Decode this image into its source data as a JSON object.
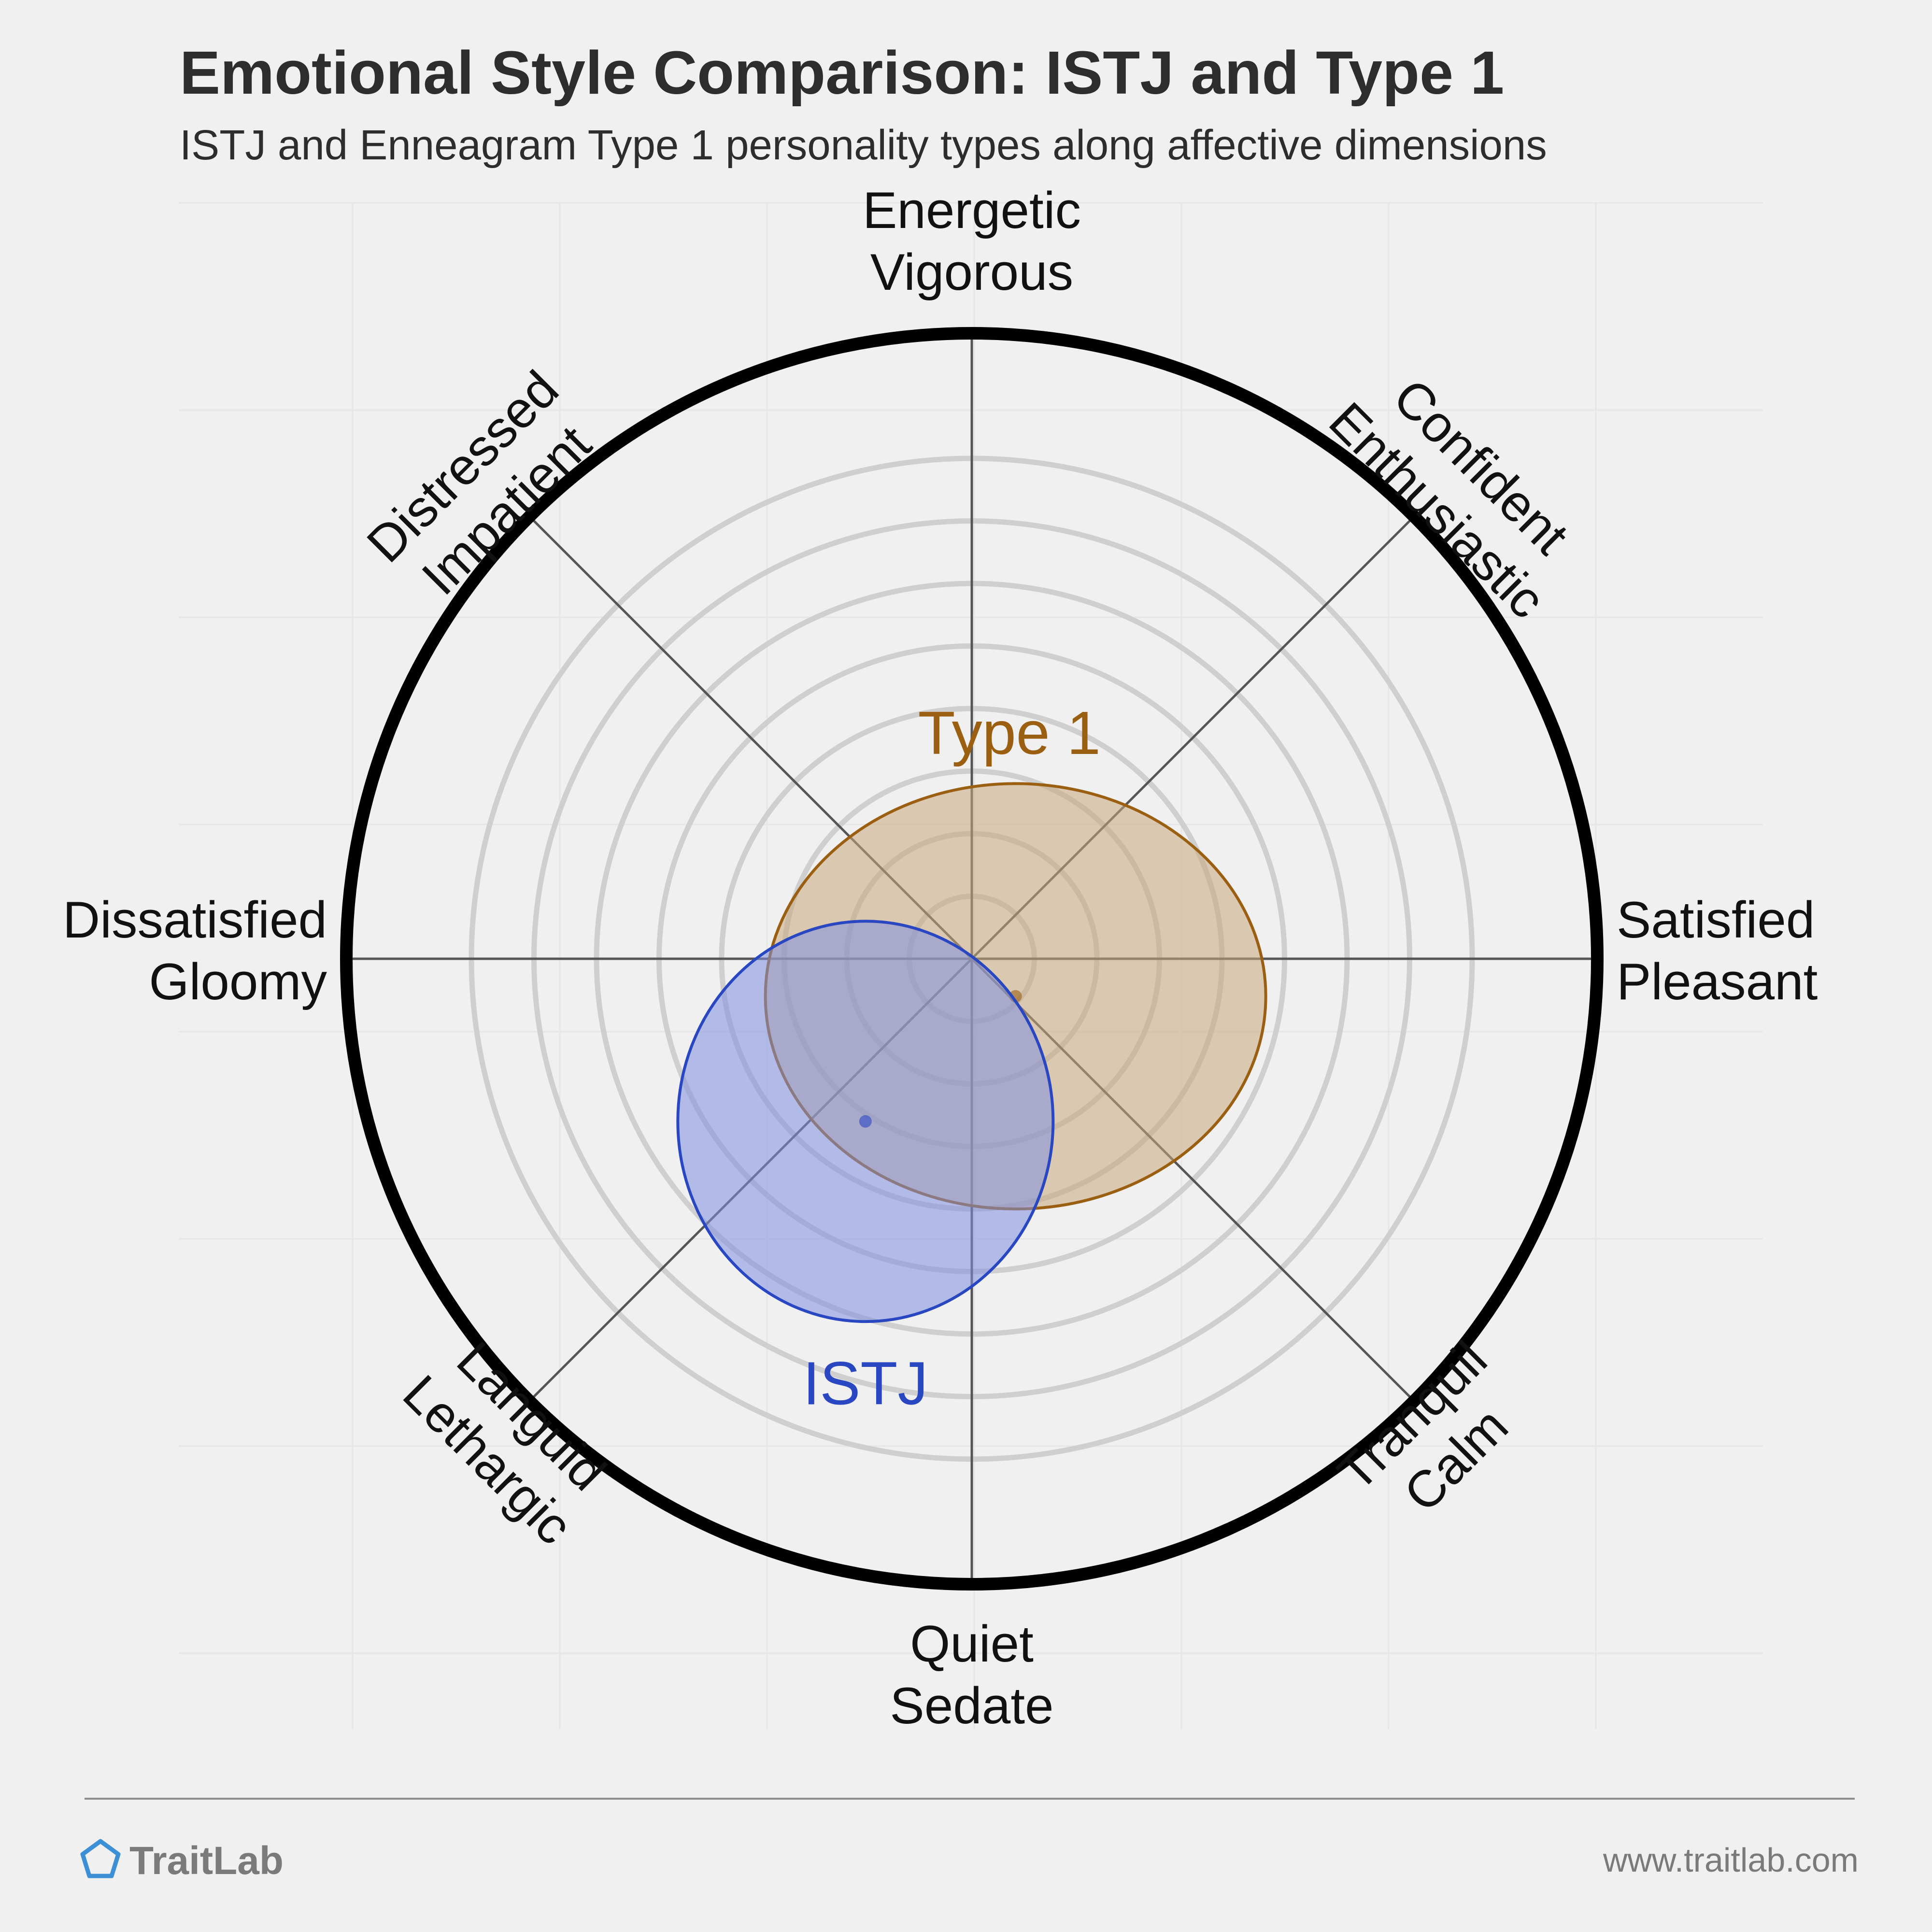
{
  "header": {
    "title": "Emotional Style Comparison: ISTJ and Type 1",
    "subtitle": "ISTJ and Enneagram Type 1 personality types along affective dimensions"
  },
  "footer": {
    "brand": "TraitLab",
    "url": "www.traitlab.com"
  },
  "chart_data": {
    "type": "radial-ellipse",
    "radius_max": 1.0,
    "ring_levels": [
      0.1,
      0.2,
      0.3,
      0.4,
      0.5,
      0.6,
      0.7,
      0.8
    ],
    "grid": true,
    "axes": [
      {
        "id": "energetic",
        "angle_deg": 90,
        "lines": [
          "Energetic",
          "Vigorous"
        ]
      },
      {
        "id": "confident",
        "angle_deg": 45,
        "lines": [
          "Confident",
          "Enthusiastic"
        ]
      },
      {
        "id": "satisfied",
        "angle_deg": 0,
        "lines": [
          "Satisfied",
          "Pleasant"
        ]
      },
      {
        "id": "tranquil",
        "angle_deg": -45,
        "lines": [
          "Tranquil",
          "Calm"
        ]
      },
      {
        "id": "quiet",
        "angle_deg": -90,
        "lines": [
          "Quiet",
          "Sedate"
        ]
      },
      {
        "id": "languid",
        "angle_deg": -135,
        "lines": [
          "Languid",
          "Lethargic"
        ]
      },
      {
        "id": "dissatisfied",
        "angle_deg": 180,
        "lines": [
          "Dissatisfied",
          "Gloomy"
        ]
      },
      {
        "id": "distressed",
        "angle_deg": 135,
        "lines": [
          "Distressed",
          "Impatient"
        ]
      }
    ],
    "series": [
      {
        "name": "Type 1",
        "center": [
          0.07,
          -0.06
        ],
        "radii": [
          0.4,
          0.34
        ],
        "color": "#9b5f12",
        "fill": "#c8a87e",
        "label_pos": [
          0.06,
          0.36
        ]
      },
      {
        "name": "ISTJ",
        "center": [
          -0.17,
          -0.26
        ],
        "radii": [
          0.3,
          0.32
        ],
        "color": "#2a47c2",
        "fill": "#7f8fe0",
        "label_pos": [
          -0.17,
          -0.68
        ]
      }
    ]
  }
}
